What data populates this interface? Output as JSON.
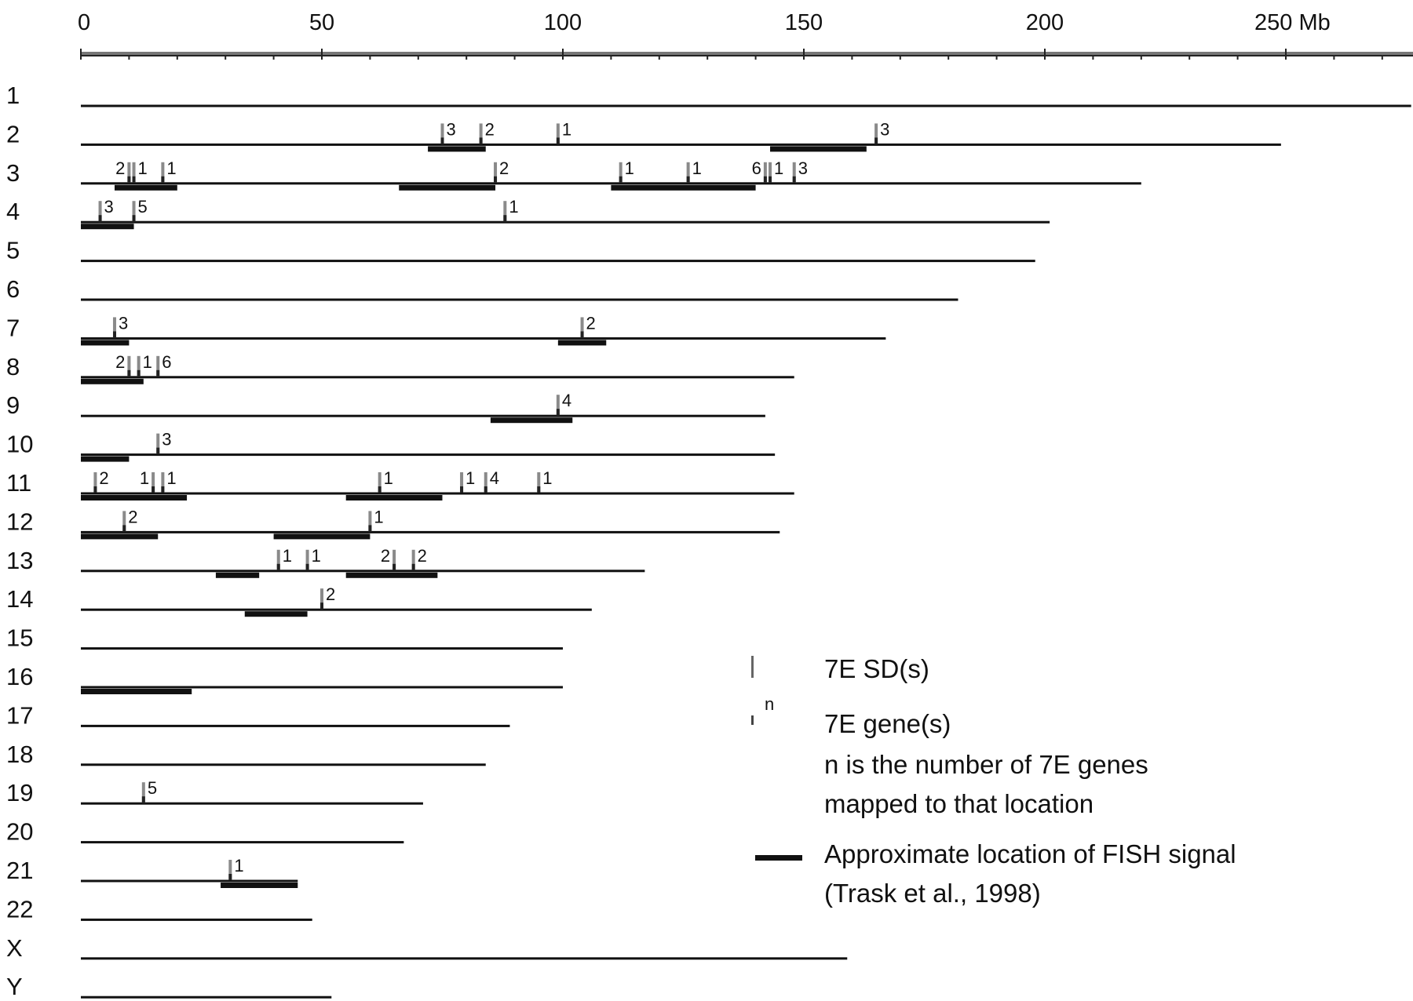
{
  "chart_data": {
    "type": "diagram",
    "unit": "Mb",
    "axis": {
      "ticks": [
        0,
        50,
        100,
        150,
        200,
        250
      ],
      "tick_labels": [
        "0",
        "50",
        "100",
        "150",
        "200",
        "250 Mb"
      ],
      "minor_step": 10,
      "max": 275
    },
    "chromosomes": [
      {
        "label": "1",
        "length": 276,
        "fish": [],
        "sd": []
      },
      {
        "label": "2",
        "length": 249,
        "fish": [
          [
            72,
            84
          ],
          [
            143,
            163
          ]
        ],
        "sd": [
          {
            "pos": 75,
            "n": "3"
          },
          {
            "pos": 83,
            "n": "2"
          },
          {
            "pos": 99,
            "n": "1"
          },
          {
            "pos": 165,
            "n": "3"
          }
        ]
      },
      {
        "label": "3",
        "length": 220,
        "fish": [
          [
            7,
            20
          ],
          [
            66,
            86
          ],
          [
            110,
            140
          ]
        ],
        "sd": [
          {
            "pos": 10,
            "n": "2",
            "side": "left"
          },
          {
            "pos": 11,
            "n": "1"
          },
          {
            "pos": 17,
            "n": "1"
          },
          {
            "pos": 86,
            "n": "2"
          },
          {
            "pos": 112,
            "n": "1"
          },
          {
            "pos": 126,
            "n": "1"
          },
          {
            "pos": 142,
            "n": "6",
            "side": "left"
          },
          {
            "pos": 143,
            "n": "1"
          },
          {
            "pos": 148,
            "n": "3"
          }
        ]
      },
      {
        "label": "4",
        "length": 201,
        "fish": [
          [
            0,
            11
          ]
        ],
        "sd": [
          {
            "pos": 4,
            "n": "3"
          },
          {
            "pos": 11,
            "n": "5"
          },
          {
            "pos": 88,
            "n": "1"
          }
        ]
      },
      {
        "label": "5",
        "length": 198,
        "fish": [],
        "sd": []
      },
      {
        "label": "6",
        "length": 182,
        "fish": [],
        "sd": []
      },
      {
        "label": "7",
        "length": 167,
        "fish": [
          [
            0,
            10
          ],
          [
            99,
            109
          ]
        ],
        "sd": [
          {
            "pos": 7,
            "n": "3"
          },
          {
            "pos": 104,
            "n": "2"
          }
        ]
      },
      {
        "label": "8",
        "length": 148,
        "fish": [
          [
            0,
            13
          ]
        ],
        "sd": [
          {
            "pos": 10,
            "n": "2",
            "side": "left"
          },
          {
            "pos": 12,
            "n": "1"
          },
          {
            "pos": 16,
            "n": "6"
          }
        ]
      },
      {
        "label": "9",
        "length": 142,
        "fish": [
          [
            85,
            102
          ]
        ],
        "sd": [
          {
            "pos": 99,
            "n": "4"
          }
        ]
      },
      {
        "label": "10",
        "length": 144,
        "fish": [
          [
            0,
            10
          ]
        ],
        "sd": [
          {
            "pos": 16,
            "n": "3"
          }
        ]
      },
      {
        "label": "11",
        "length": 148,
        "fish": [
          [
            0,
            22
          ],
          [
            55,
            75
          ]
        ],
        "sd": [
          {
            "pos": 3,
            "n": "2"
          },
          {
            "pos": 15,
            "n": "1",
            "side": "left"
          },
          {
            "pos": 17,
            "n": "1"
          },
          {
            "pos": 62,
            "n": "1"
          },
          {
            "pos": 79,
            "n": "1"
          },
          {
            "pos": 84,
            "n": "4"
          },
          {
            "pos": 95,
            "n": "1"
          }
        ]
      },
      {
        "label": "12",
        "length": 145,
        "fish": [
          [
            0,
            16
          ],
          [
            40,
            60
          ]
        ],
        "sd": [
          {
            "pos": 9,
            "n": "2"
          },
          {
            "pos": 60,
            "n": "1"
          }
        ]
      },
      {
        "label": "13",
        "length": 117,
        "fish": [
          [
            28,
            37
          ],
          [
            55,
            74
          ]
        ],
        "sd": [
          {
            "pos": 41,
            "n": "1"
          },
          {
            "pos": 47,
            "n": "1"
          },
          {
            "pos": 65,
            "n": "2",
            "side": "left"
          },
          {
            "pos": 69,
            "n": "2"
          }
        ]
      },
      {
        "label": "14",
        "length": 106,
        "fish": [
          [
            34,
            47
          ]
        ],
        "sd": [
          {
            "pos": 50,
            "n": "2"
          }
        ]
      },
      {
        "label": "15",
        "length": 100,
        "fish": [],
        "sd": []
      },
      {
        "label": "16",
        "length": 100,
        "fish": [
          [
            0,
            23
          ]
        ],
        "sd": []
      },
      {
        "label": "17",
        "length": 89,
        "fish": [],
        "sd": []
      },
      {
        "label": "18",
        "length": 84,
        "fish": [],
        "sd": []
      },
      {
        "label": "19",
        "length": 71,
        "fish": [],
        "sd": [
          {
            "pos": 13,
            "n": "5"
          }
        ]
      },
      {
        "label": "20",
        "length": 67,
        "fish": [],
        "sd": []
      },
      {
        "label": "21",
        "length": 45,
        "fish": [
          [
            29,
            45
          ]
        ],
        "sd": [
          {
            "pos": 31,
            "n": "1"
          }
        ]
      },
      {
        "label": "22",
        "length": 48,
        "fish": [],
        "sd": []
      },
      {
        "label": "X",
        "length": 159,
        "fish": [],
        "sd": []
      },
      {
        "label": "Y",
        "length": 52,
        "fish": [],
        "sd": []
      }
    ],
    "legend": {
      "sd_label": "7E SD(s)",
      "gene_symbol": "n",
      "gene_label": "7E gene(s)",
      "gene_note_line1": "n is the number of 7E genes",
      "gene_note_line2": "mapped to that location",
      "fish_label_line1": "Approximate location of FISH signal",
      "fish_label_line2": "(Trask et al., 1998)"
    }
  }
}
